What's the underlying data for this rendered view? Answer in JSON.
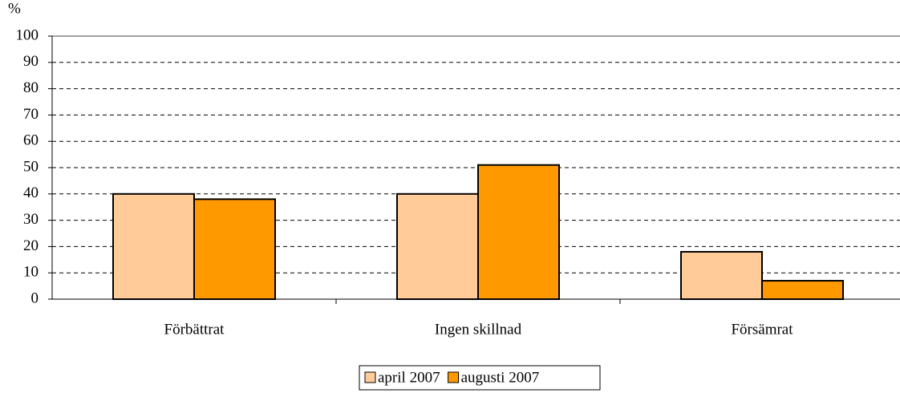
{
  "chart_data": {
    "type": "bar",
    "y_label": "%",
    "categories": [
      "Förbättrat",
      "Ingen skillnad",
      "Försämrat"
    ],
    "series": [
      {
        "name": "april 2007",
        "color": "#ffcc99",
        "values": [
          40,
          40,
          18
        ]
      },
      {
        "name": "augusti 2007",
        "color": "#ff9900",
        "values": [
          38,
          51,
          7
        ]
      }
    ],
    "ylim": [
      0,
      100
    ],
    "yticks": [
      0,
      10,
      20,
      30,
      40,
      50,
      60,
      70,
      80,
      90,
      100
    ],
    "grid": true,
    "legend": "bottom"
  }
}
